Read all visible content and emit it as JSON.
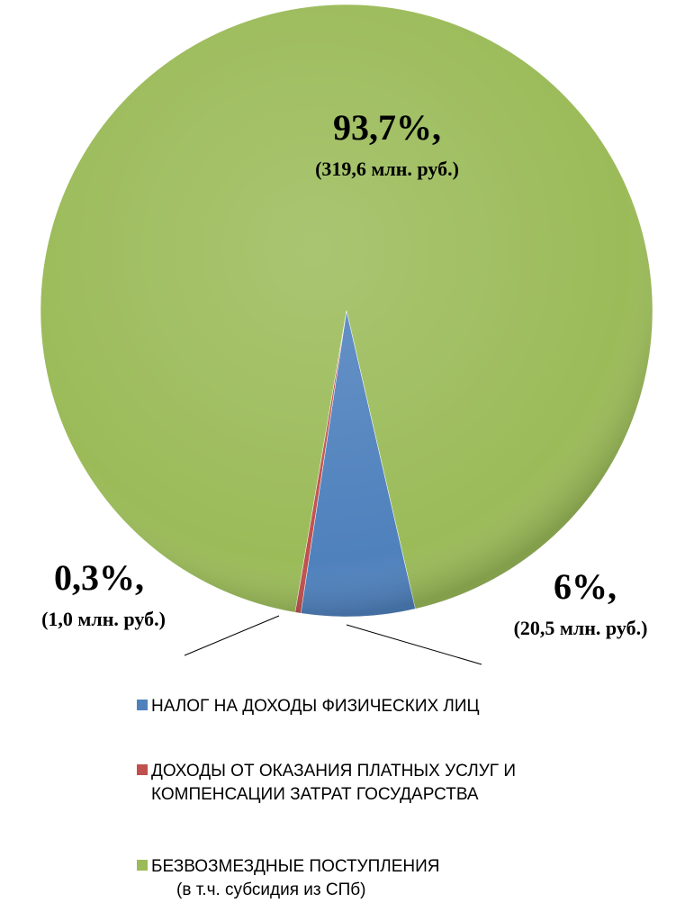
{
  "chart_data": {
    "type": "pie",
    "categories": [
      "НАЛОГ НА ДОХОДЫ ФИЗИЧЕСКИХ ЛИЦ",
      "ДОХОДЫ ОТ ОКАЗАНИЯ ПЛАТНЫХ УСЛУГ И КОМПЕНСАЦИИ ЗАТРАТ ГОСУДАРСТВА",
      "БЕЗВОЗМЕЗДНЫЕ ПОСТУПЛЕНИЯ"
    ],
    "values": [
      6,
      0.3,
      93.7
    ],
    "value_labels": [
      "6%,",
      "0,3%,",
      "93,7%,"
    ],
    "amount_labels": [
      "(20,5 млн. руб.)",
      "(1,0 млн. руб.)",
      "(319,6 млн. руб.)"
    ],
    "colors": [
      "#4f81bd",
      "#c0504d",
      "#9bbb59"
    ],
    "legend_note": "(в т.ч. субсидия из  СПб)"
  }
}
